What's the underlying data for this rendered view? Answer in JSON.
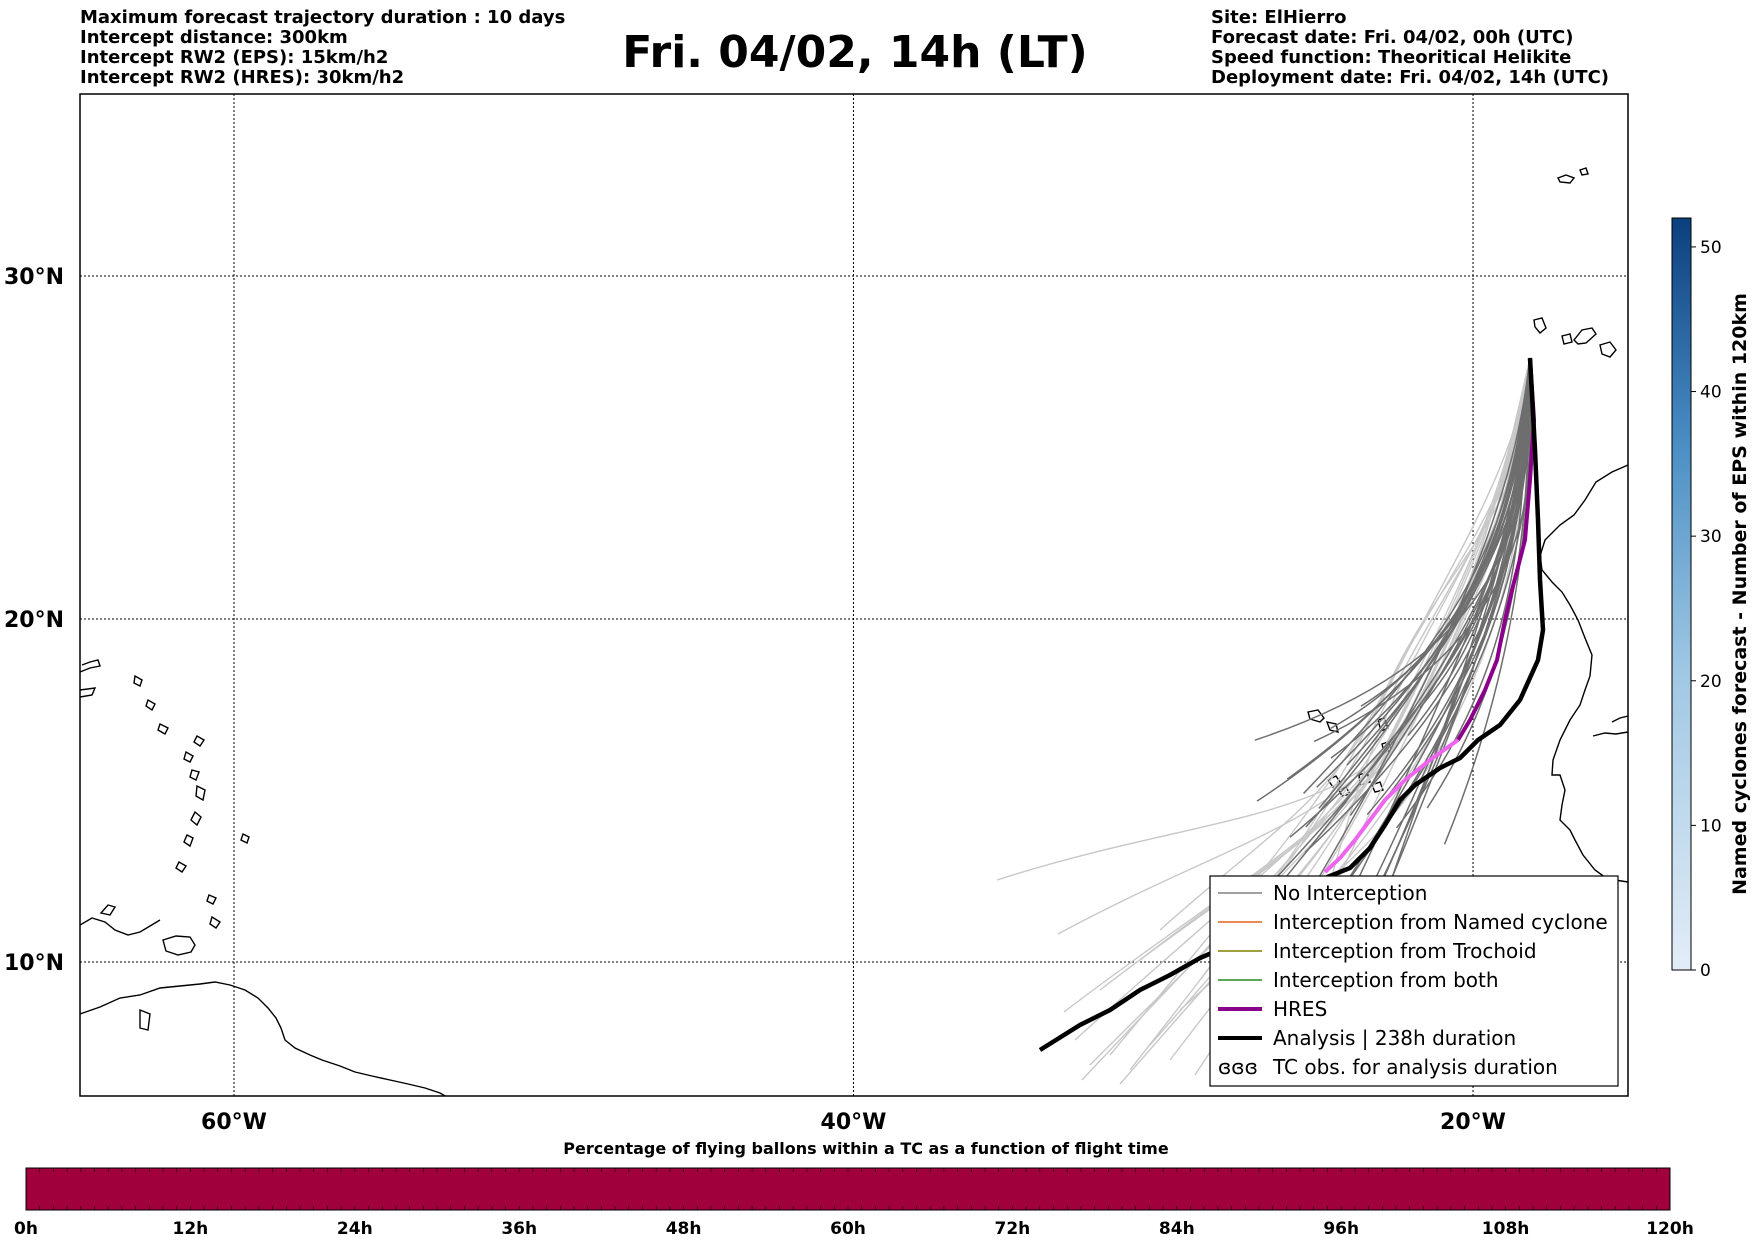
{
  "header_left": [
    "Maximum forecast trajectory duration : 10 days",
    "Intercept distance: 300km",
    "Intercept RW2 (EPS):  15km/h2",
    "Intercept RW2 (HRES): 30km/h2"
  ],
  "title": "Fri. 04/02, 14h (LT)",
  "header_right": [
    "Site: ElHierro",
    "Forecast date: Fri. 04/02, 00h (UTC)",
    "Speed function: Theoritical Helikite",
    "Deployment date: Fri. 04/02, 14h (UTC)"
  ],
  "map": {
    "lon_range": [
      -65,
      -15
    ],
    "lat_range": [
      5.3,
      34.6
    ],
    "lat_labels": [
      "30°N",
      "20°N",
      "10°N"
    ],
    "lat_values": [
      30,
      20,
      10
    ],
    "lon_labels": [
      "60°W",
      "40°W",
      "20°W"
    ],
    "lon_values": [
      -60,
      -40,
      -20
    ]
  },
  "legend": {
    "items": [
      {
        "label": "No Interception",
        "color": "#808080",
        "style": "thin"
      },
      {
        "label": "Interception from Named cyclone",
        "color": "#e8601c",
        "style": "thin"
      },
      {
        "label": "Interception from Trochoid",
        "color": "#808000",
        "style": "thin"
      },
      {
        "label": "Interception from both",
        "color": "#228b22",
        "style": "thin"
      },
      {
        "label": "HRES",
        "color": "#8b008b",
        "style": "thick"
      },
      {
        "label": "Analysis | 238h duration",
        "color": "#000000",
        "style": "thick"
      },
      {
        "label": "TC obs. for analysis duration",
        "color": "#000000",
        "style": "symbol"
      }
    ],
    "symbol": "ɞɞɞ"
  },
  "colorbar_right": {
    "label": "Named cyclones forecast - Number of EPS within 120km",
    "ticks": [
      "0",
      "10",
      "20",
      "30",
      "40",
      "50"
    ],
    "tick_values": [
      0,
      10,
      20,
      30,
      40,
      50
    ],
    "max": 52,
    "color_low": "#e3edf8",
    "color_high": "#0b3f7e"
  },
  "colorbar_bottom": {
    "label": "Percentage of flying ballons within a TC as a function of flight time",
    "ticks": [
      "0h",
      "12h",
      "24h",
      "36h",
      "48h",
      "60h",
      "72h",
      "84h",
      "96h",
      "108h",
      "120h"
    ],
    "color": "#a0003c"
  }
}
